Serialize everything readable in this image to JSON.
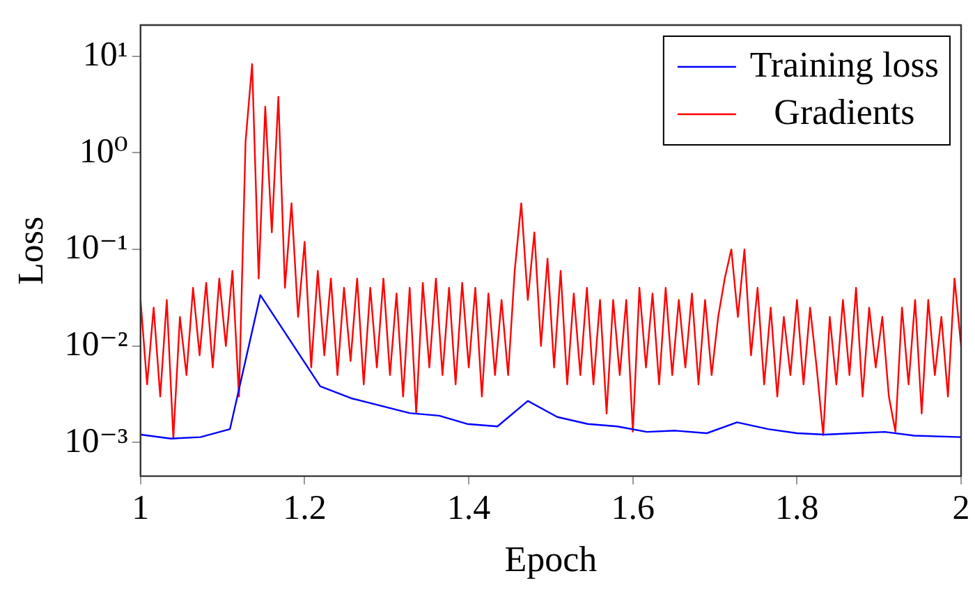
{
  "chart_data": {
    "type": "line",
    "xlabel": "Epoch",
    "ylabel": "Loss",
    "log": "y",
    "grid": false,
    "legend": "top right",
    "marker": "none",
    "line_style": "solid",
    "xlim": [
      1,
      2
    ],
    "xticks": [
      1,
      1.2,
      1.4,
      1.6,
      1.8,
      2
    ],
    "ylim": [
      0.00045,
      21
    ],
    "yticks": [
      {
        "value": 0.001,
        "label": "10⁻³"
      },
      {
        "value": 0.01,
        "label": "10⁻²"
      },
      {
        "value": 0.1,
        "label": "10⁻¹"
      },
      {
        "value": 1,
        "label": "10⁰"
      },
      {
        "value": 10,
        "label": "10¹"
      }
    ],
    "series": [
      {
        "name": "Training loss",
        "color": "#0000ff",
        "x": [
          1.0,
          1.037,
          1.073,
          1.109,
          1.146,
          1.219,
          1.257,
          1.328,
          1.364,
          1.398,
          1.435,
          1.472,
          1.508,
          1.545,
          1.581,
          1.617,
          1.652,
          1.69,
          1.727,
          1.765,
          1.8,
          1.834,
          1.87,
          1.907,
          1.943,
          2.0
        ],
        "values": [
          0.00121,
          0.0011,
          0.00114,
          0.00138,
          0.0337,
          0.00383,
          0.00287,
          0.00202,
          0.0019,
          0.00156,
          0.00147,
          0.0027,
          0.00184,
          0.00156,
          0.00147,
          0.00129,
          0.00133,
          0.00125,
          0.00162,
          0.00138,
          0.00125,
          0.00121,
          0.00125,
          0.00129,
          0.00118,
          0.00114
        ]
      },
      {
        "name": "Gradients",
        "color": "#ff0000",
        "x": [
          1.0,
          1.008,
          1.016,
          1.024,
          1.032,
          1.04,
          1.048,
          1.056,
          1.064,
          1.072,
          1.08,
          1.088,
          1.096,
          1.104,
          1.112,
          1.12,
          1.128,
          1.136,
          1.144,
          1.152,
          1.16,
          1.168,
          1.176,
          1.184,
          1.192,
          1.2,
          1.208,
          1.216,
          1.224,
          1.232,
          1.24,
          1.248,
          1.256,
          1.264,
          1.272,
          1.28,
          1.288,
          1.296,
          1.304,
          1.312,
          1.32,
          1.328,
          1.336,
          1.344,
          1.352,
          1.36,
          1.368,
          1.376,
          1.384,
          1.392,
          1.4,
          1.408,
          1.416,
          1.424,
          1.432,
          1.44,
          1.448,
          1.456,
          1.464,
          1.472,
          1.48,
          1.488,
          1.496,
          1.504,
          1.512,
          1.52,
          1.528,
          1.536,
          1.544,
          1.552,
          1.56,
          1.568,
          1.576,
          1.584,
          1.592,
          1.6,
          1.608,
          1.616,
          1.624,
          1.632,
          1.64,
          1.648,
          1.656,
          1.664,
          1.672,
          1.68,
          1.688,
          1.696,
          1.704,
          1.712,
          1.72,
          1.728,
          1.736,
          1.744,
          1.752,
          1.76,
          1.768,
          1.776,
          1.784,
          1.792,
          1.8,
          1.808,
          1.816,
          1.824,
          1.832,
          1.84,
          1.848,
          1.856,
          1.864,
          1.872,
          1.88,
          1.888,
          1.896,
          1.904,
          1.912,
          1.92,
          1.928,
          1.936,
          1.944,
          1.952,
          1.96,
          1.968,
          1.976,
          1.984,
          1.992,
          2.0
        ],
        "values": [
          0.03,
          0.004,
          0.025,
          0.003,
          0.03,
          0.0011,
          0.02,
          0.005,
          0.04,
          0.008,
          0.045,
          0.006,
          0.05,
          0.01,
          0.06,
          0.003,
          1.3,
          8.3,
          0.05,
          3,
          0.15,
          3.8,
          0.04,
          0.3,
          0.02,
          0.12,
          0.006,
          0.06,
          0.008,
          0.05,
          0.005,
          0.04,
          0.007,
          0.05,
          0.004,
          0.04,
          0.006,
          0.05,
          0.005,
          0.035,
          0.003,
          0.04,
          0.002,
          0.045,
          0.006,
          0.05,
          0.005,
          0.04,
          0.004,
          0.045,
          0.006,
          0.04,
          0.003,
          0.035,
          0.005,
          0.03,
          0.005,
          0.06,
          0.3,
          0.03,
          0.15,
          0.01,
          0.08,
          0.006,
          0.06,
          0.004,
          0.035,
          0.005,
          0.04,
          0.004,
          0.03,
          0.002,
          0.03,
          0.005,
          0.03,
          0.0013,
          0.04,
          0.006,
          0.035,
          0.004,
          0.04,
          0.005,
          0.03,
          0.006,
          0.035,
          0.004,
          0.03,
          0.005,
          0.02,
          0.05,
          0.1,
          0.02,
          0.1,
          0.008,
          0.04,
          0.004,
          0.025,
          0.003,
          0.02,
          0.005,
          0.03,
          0.004,
          0.025,
          0.006,
          0.0012,
          0.02,
          0.004,
          0.03,
          0.005,
          0.04,
          0.003,
          0.025,
          0.006,
          0.02,
          0.003,
          0.0013,
          0.025,
          0.004,
          0.03,
          0.002,
          0.03,
          0.005,
          0.02,
          0.003,
          0.05,
          0.01
        ]
      }
    ]
  }
}
